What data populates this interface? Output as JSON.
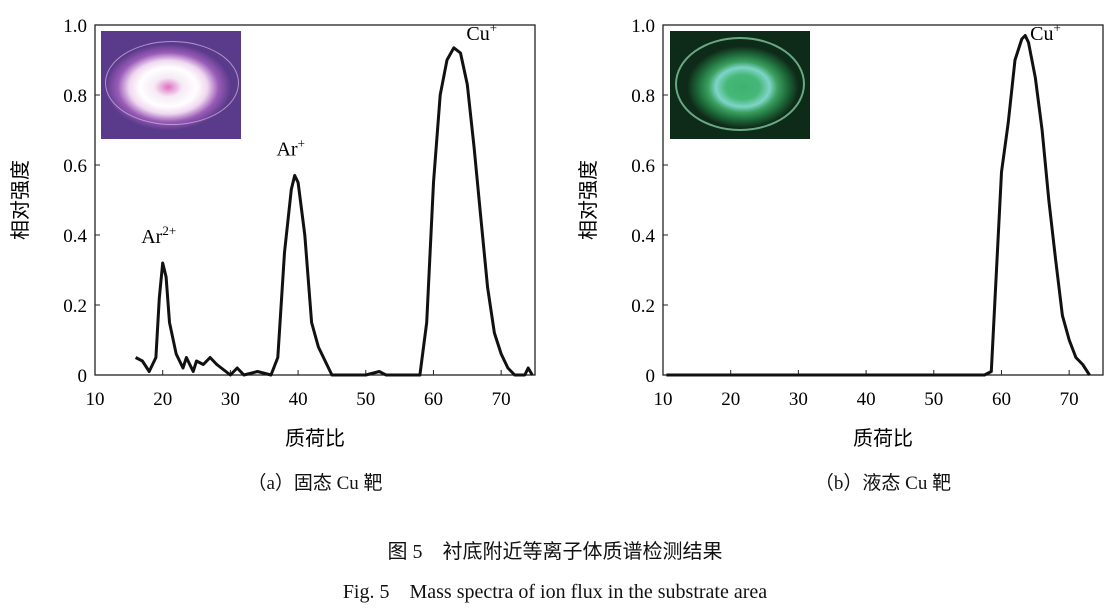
{
  "chart_data": [
    {
      "type": "line",
      "caption": "（a）固态 Cu 靶",
      "xlabel": "质荷比",
      "ylabel": "相对强度",
      "xlim": [
        10,
        75
      ],
      "ylim": [
        0,
        1.0
      ],
      "xticks": [
        10,
        20,
        30,
        40,
        50,
        60,
        70
      ],
      "yticks": [
        0,
        0.2,
        0.4,
        0.6,
        0.8,
        1.0
      ],
      "ytick_labels": [
        "0",
        "0.2",
        "0.4",
        "0.6",
        "0.8",
        "1.0"
      ],
      "grid": false,
      "inset_photo": "purple plasma glow",
      "annotations": [
        {
          "base": "Ar",
          "sup": "2+",
          "x": 20,
          "y": 0.32
        },
        {
          "base": "Ar",
          "sup": "+",
          "x": 39.5,
          "y": 0.57
        },
        {
          "base": "Cu",
          "sup": "+",
          "x": 63,
          "y": 0.935
        }
      ],
      "x": [
        16,
        17,
        18,
        19,
        19.5,
        20,
        20.5,
        21,
        22,
        23,
        23.5,
        24.5,
        25,
        26,
        27,
        28,
        30,
        31,
        32,
        34,
        36,
        37,
        38,
        39,
        39.5,
        40,
        41,
        42,
        43,
        45,
        50,
        52,
        53,
        58,
        59,
        60,
        61,
        62,
        63,
        64,
        65,
        66,
        67,
        68,
        69,
        70,
        71,
        72,
        73.5,
        74,
        74.6
      ],
      "y": [
        0.05,
        0.04,
        0.01,
        0.05,
        0.22,
        0.32,
        0.28,
        0.15,
        0.06,
        0.02,
        0.05,
        0.01,
        0.04,
        0.03,
        0.05,
        0.03,
        0.0,
        0.02,
        0.0,
        0.01,
        0.0,
        0.05,
        0.35,
        0.53,
        0.57,
        0.55,
        0.4,
        0.15,
        0.08,
        0.0,
        0.0,
        0.01,
        0.0,
        0.0,
        0.15,
        0.55,
        0.8,
        0.9,
        0.935,
        0.92,
        0.83,
        0.65,
        0.45,
        0.25,
        0.12,
        0.06,
        0.02,
        0.0,
        0.0,
        0.02,
        0.0
      ]
    },
    {
      "type": "line",
      "caption": "（b）液态 Cu 靶",
      "xlabel": "质荷比",
      "ylabel": "相对强度",
      "xlim": [
        10,
        75
      ],
      "ylim": [
        0,
        1.0
      ],
      "xticks": [
        10,
        20,
        30,
        40,
        50,
        60,
        70
      ],
      "yticks": [
        0,
        0.2,
        0.4,
        0.6,
        0.8,
        1.0
      ],
      "ytick_labels": [
        "0",
        "0.2",
        "0.4",
        "0.6",
        "0.8",
        "1.0"
      ],
      "grid": false,
      "inset_photo": "green plasma glow",
      "annotations": [
        {
          "base": "Cu",
          "sup": "+",
          "x": 66.5,
          "y": 0.935
        }
      ],
      "x": [
        10.5,
        57.5,
        58.5,
        59,
        60,
        61,
        62,
        63,
        63.5,
        64,
        65,
        66,
        67,
        68,
        69,
        70,
        71,
        72,
        73
      ],
      "y": [
        0.0,
        0.0,
        0.01,
        0.2,
        0.58,
        0.72,
        0.9,
        0.96,
        0.97,
        0.95,
        0.85,
        0.7,
        0.5,
        0.33,
        0.17,
        0.1,
        0.05,
        0.03,
        0.0
      ]
    }
  ],
  "figure": {
    "title_cn": "图 5　衬底附近等离子体质谱检测结果",
    "title_en": "Fig. 5　Mass spectra of ion flux in the substrate area"
  }
}
